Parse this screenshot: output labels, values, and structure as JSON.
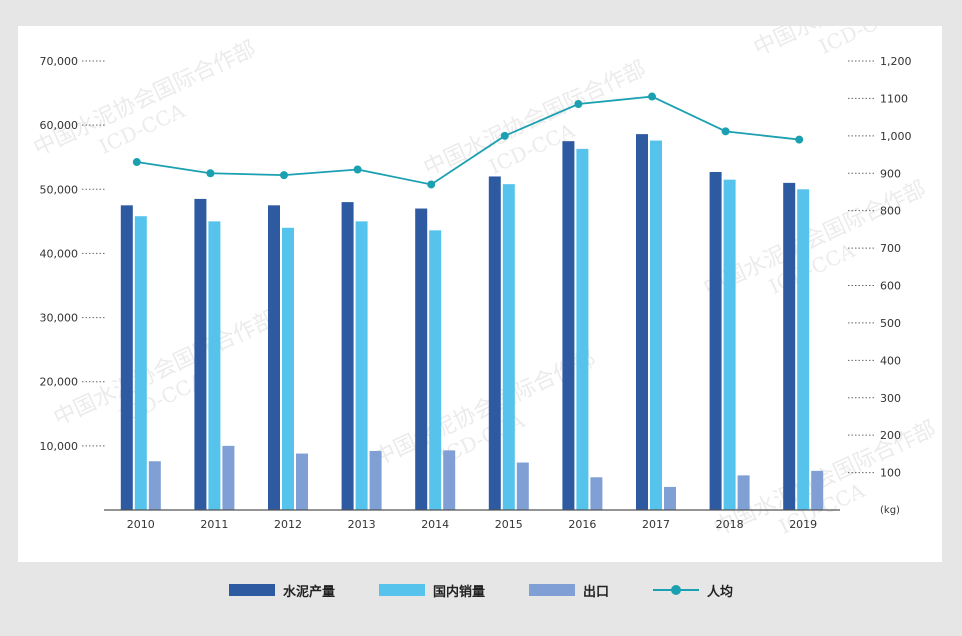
{
  "chart_data": {
    "type": "bar",
    "categories": [
      "2010",
      "2011",
      "2012",
      "2013",
      "2014",
      "2015",
      "2016",
      "2017",
      "2018",
      "2019"
    ],
    "series": [
      {
        "name": "水泥产量",
        "type": "bar",
        "axis": "left",
        "color": "#2d5aa0",
        "values": [
          47500,
          48500,
          47500,
          48000,
          47000,
          52000,
          57500,
          58600,
          52700,
          51000
        ]
      },
      {
        "name": "国内销量",
        "type": "bar",
        "axis": "left",
        "color": "#55c3ec",
        "values": [
          45800,
          45000,
          44000,
          45000,
          43600,
          50800,
          56300,
          57600,
          51500,
          50000
        ]
      },
      {
        "name": "出口",
        "type": "bar",
        "axis": "left",
        "color": "#7f9fd5",
        "values": [
          7600,
          10000,
          8800,
          9200,
          9300,
          7400,
          5100,
          3600,
          5400,
          6100
        ]
      },
      {
        "name": "人均",
        "type": "line",
        "axis": "right",
        "color": "#1aa0b0",
        "values": [
          930,
          900,
          895,
          910,
          870,
          1000,
          1085,
          1105,
          1012,
          990
        ]
      }
    ],
    "y_left": {
      "ylim": [
        0,
        70000
      ],
      "ticks": [
        "10,000",
        "20,000",
        "30,000",
        "40,000",
        "50,000",
        "60,000",
        "70,000"
      ]
    },
    "y_right": {
      "ylim": [
        0,
        1200
      ],
      "unit": "(kg)",
      "ticks": [
        "100",
        "200",
        "300",
        "400",
        "500",
        "600",
        "700",
        "800",
        "900",
        "1,000",
        "1100",
        "1,200"
      ]
    },
    "legend": "bottom-center",
    "grid": false
  },
  "watermark": {
    "line1": "中国水泥协会国际合作部",
    "line2": "ICD-CCA"
  }
}
